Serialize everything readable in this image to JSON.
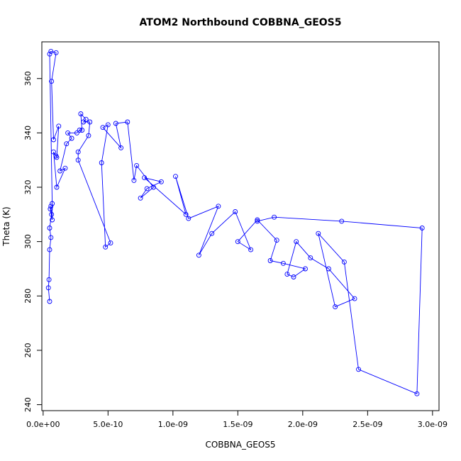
{
  "chart_data": {
    "type": "scatter",
    "title": "ATOM2 Northbound COBBNA_GEOS5",
    "xlabel": "COBBNA_GEOS5",
    "ylabel": "Theta (K)",
    "xlim": [
      -1e-11,
      3.05e-09
    ],
    "ylim": [
      237.8,
      373.5
    ],
    "x_ticks": [
      0,
      5e-10,
      1e-09,
      1.5e-09,
      2e-09,
      2.5e-09,
      3e-09
    ],
    "x_tick_labels": [
      "0.0e+00",
      "5.0e-10",
      "1.0e-09",
      "1.5e-09",
      "2.0e-09",
      "2.5e-09",
      "3.0e-09"
    ],
    "y_ticks": [
      240,
      260,
      280,
      300,
      320,
      340,
      360
    ],
    "y_tick_labels": [
      "240",
      "260",
      "280",
      "300",
      "320",
      "340",
      "360"
    ],
    "grid": false,
    "legend": "none",
    "color": "#0000ff",
    "marker": "open-circle",
    "connect_points": true,
    "series": [
      {
        "x": [
          5e-11,
          4e-11,
          4.5e-11,
          5e-11,
          6e-11,
          5e-11,
          6.5e-11,
          6e-11,
          5.5e-11,
          7e-11,
          7e-11,
          5e-11,
          6e-11,
          1e-10,
          6.5e-11,
          8e-11,
          1.2e-10,
          1.05e-10,
          1e-10,
          8e-11,
          1.05e-10,
          1.7e-10,
          1.3e-10,
          1.8e-10,
          2.2e-10,
          1.9e-10,
          2.6e-10,
          2.8e-10,
          3e-10,
          2.9e-10,
          3.3e-10,
          3.1e-10,
          3.6e-10,
          3.5e-10,
          2.7e-10,
          2.7e-10,
          5.2e-10,
          4.8e-10,
          4.5e-10,
          5e-10,
          4.6e-10,
          6e-10,
          5.6e-10,
          6.5e-10,
          7e-10,
          7.2e-10,
          8.5e-10,
          7.5e-10,
          8e-10,
          9.1e-10,
          7.8e-10,
          1.1e-09,
          1.02e-09,
          1.12e-09,
          1.35e-09,
          1.2e-09,
          1.3e-09,
          1.48e-09,
          1.6e-09,
          1.5e-09,
          1.65e-09,
          1.8e-09,
          1.75e-09,
          1.85e-09,
          2.02e-09,
          1.93e-09,
          1.88e-09,
          1.95e-09,
          2.06e-09,
          2.2e-09,
          2.4e-09,
          2.25e-09,
          2.12e-09,
          2.32e-09,
          2.43e-09,
          2.88e-09,
          2.92e-09,
          2.3e-09,
          1.78e-09,
          1.65e-09
        ],
        "y": [
          278,
          283,
          286,
          297,
          301.5,
          305,
          310,
          313,
          312,
          308,
          314,
          369,
          370,
          369.5,
          359,
          337.5,
          342.5,
          331,
          331.5,
          333,
          320,
          327,
          326,
          336,
          338,
          340,
          340,
          341,
          341,
          347,
          345,
          344,
          344,
          339,
          333,
          330,
          299.5,
          298,
          329,
          343,
          342,
          334.5,
          343.5,
          344,
          322.5,
          328,
          320,
          316,
          319.5,
          322,
          323.5,
          310,
          324,
          308.5,
          313,
          295,
          303,
          311,
          297,
          300,
          308,
          300.5,
          293,
          292,
          290,
          287,
          288,
          300,
          294,
          290,
          279,
          276,
          303,
          292.5,
          253,
          244,
          305,
          307.5,
          309,
          307.5
        ]
      }
    ]
  }
}
